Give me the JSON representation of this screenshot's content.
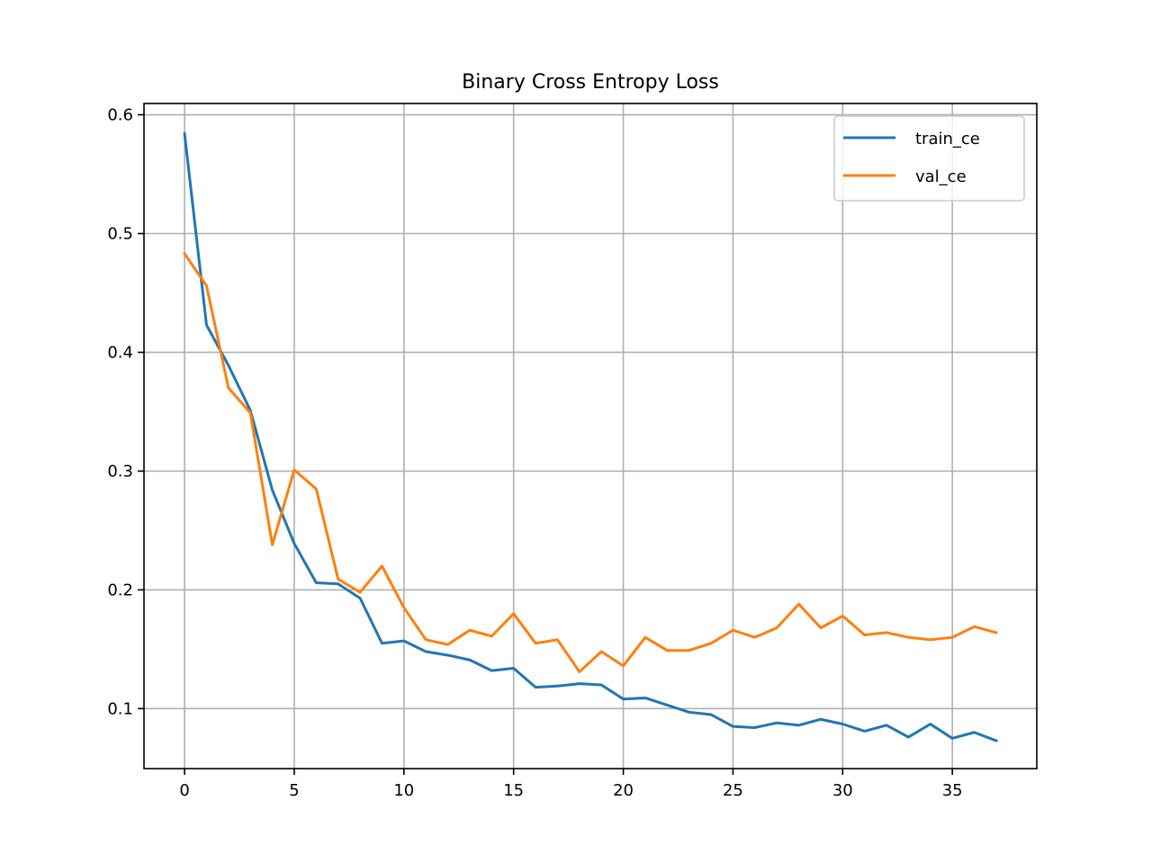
{
  "chart_data": {
    "type": "line",
    "title": "Binary Cross Entropy Loss",
    "xlabel": "",
    "ylabel": "",
    "xlim": [
      -1.85,
      38.85
    ],
    "ylim": [
      0.0495,
      0.6095
    ],
    "xticks": [
      0,
      5,
      10,
      15,
      20,
      25,
      30,
      35
    ],
    "xtick_labels": [
      "0",
      "5",
      "10",
      "15",
      "20",
      "25",
      "30",
      "35"
    ],
    "yticks": [
      0.1,
      0.2,
      0.3,
      0.4,
      0.5,
      0.6
    ],
    "ytick_labels": [
      "0.1",
      "0.2",
      "0.3",
      "0.4",
      "0.5",
      "0.6"
    ],
    "grid": true,
    "legend_position": "top-right",
    "x": [
      0,
      1,
      2,
      3,
      4,
      5,
      6,
      7,
      8,
      9,
      10,
      11,
      12,
      13,
      14,
      15,
      16,
      17,
      18,
      19,
      20,
      21,
      22,
      23,
      24,
      25,
      26,
      27,
      28,
      29,
      30,
      31,
      32,
      33,
      34,
      35,
      36,
      37
    ],
    "series": [
      {
        "name": "train_ce",
        "color": "#1f77b4",
        "values": [
          0.584,
          0.423,
          0.389,
          0.351,
          0.284,
          0.239,
          0.206,
          0.205,
          0.193,
          0.155,
          0.157,
          0.148,
          0.145,
          0.141,
          0.132,
          0.134,
          0.118,
          0.119,
          0.121,
          0.12,
          0.108,
          0.109,
          0.103,
          0.097,
          0.095,
          0.085,
          0.084,
          0.088,
          0.086,
          0.091,
          0.087,
          0.081,
          0.086,
          0.076,
          0.087,
          0.075,
          0.08,
          0.073
        ]
      },
      {
        "name": "val_ce",
        "color": "#ff7f0e",
        "values": [
          0.483,
          0.456,
          0.37,
          0.349,
          0.238,
          0.301,
          0.285,
          0.209,
          0.198,
          0.22,
          0.185,
          0.158,
          0.154,
          0.166,
          0.161,
          0.18,
          0.155,
          0.158,
          0.131,
          0.148,
          0.136,
          0.16,
          0.149,
          0.149,
          0.155,
          0.166,
          0.16,
          0.168,
          0.188,
          0.168,
          0.178,
          0.162,
          0.164,
          0.16,
          0.158,
          0.16,
          0.169,
          0.164
        ]
      }
    ]
  }
}
